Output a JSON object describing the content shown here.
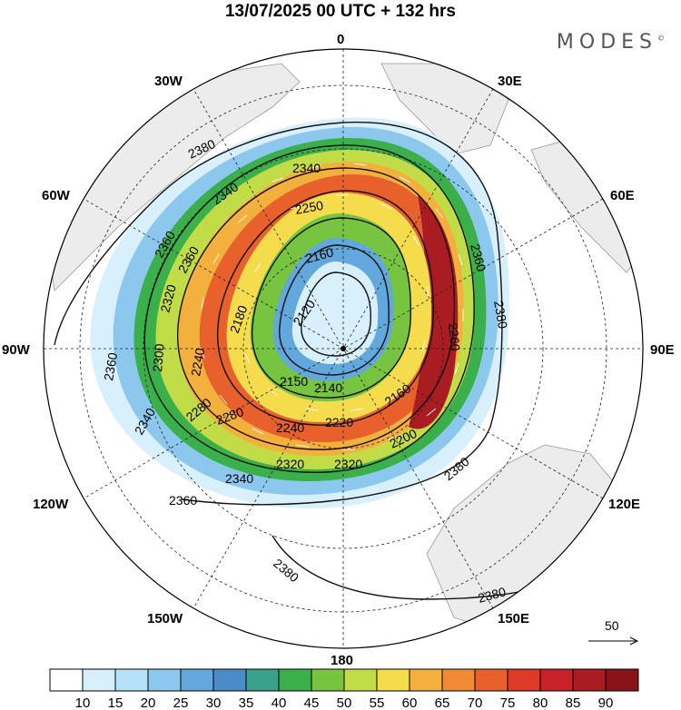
{
  "title": "13/07/2025  00 UTC  + 132 hrs",
  "brand": "MODES",
  "brand_mark": "©",
  "longitude_labels": [
    {
      "text": "0",
      "lon": 0
    },
    {
      "text": "30E",
      "lon": 30
    },
    {
      "text": "60E",
      "lon": 60
    },
    {
      "text": "90E",
      "lon": 90
    },
    {
      "text": "120E",
      "lon": 120
    },
    {
      "text": "150E",
      "lon": 150
    },
    {
      "text": "180",
      "lon": 180
    },
    {
      "text": "150W",
      "lon": -150
    },
    {
      "text": "120W",
      "lon": -120
    },
    {
      "text": "90W",
      "lon": -90
    },
    {
      "text": "60W",
      "lon": -60
    },
    {
      "text": "30W",
      "lon": -30
    }
  ],
  "contour_labels": [
    "2380",
    "2340",
    "2340",
    "2360",
    "2360",
    "2320",
    "2300",
    "2280",
    "2250",
    "2160",
    "2120",
    "2180",
    "2240",
    "2150",
    "2140",
    "2160",
    "2200",
    "2220",
    "2240",
    "2280",
    "2320",
    "2320",
    "2340",
    "2360",
    "2340",
    "2360",
    "2380",
    "2380",
    "2380",
    "2260",
    "2360",
    "2380"
  ],
  "vector_reference": "50",
  "colorbar": {
    "ticks": [
      "10",
      "15",
      "20",
      "25",
      "30",
      "35",
      "40",
      "45",
      "50",
      "55",
      "60",
      "65",
      "70",
      "75",
      "80",
      "85",
      "90"
    ],
    "colors": [
      "#ffffff",
      "#d8f0fc",
      "#b6e2f8",
      "#8cc8ee",
      "#62a8dc",
      "#4a8cc8",
      "#3aa28a",
      "#3bb04a",
      "#76c440",
      "#c2dc48",
      "#f4dc4c",
      "#f4b03c",
      "#f08a34",
      "#e8602c",
      "#de3a28",
      "#c82228",
      "#a81c22",
      "#881418"
    ]
  }
}
